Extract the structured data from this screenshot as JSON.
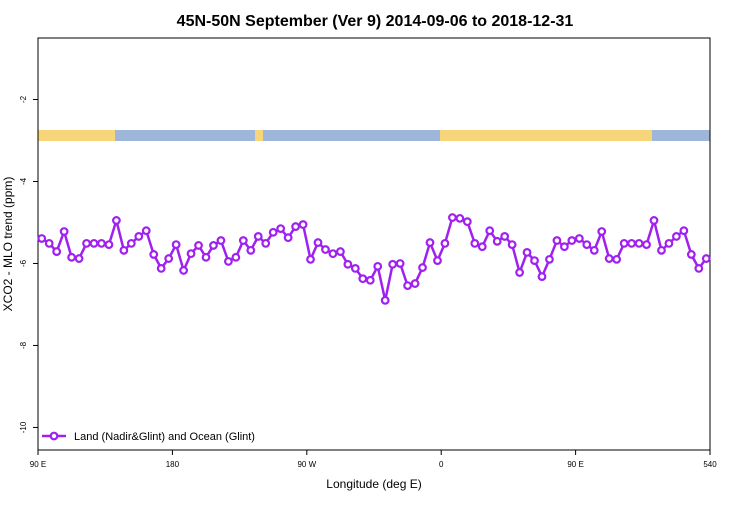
{
  "chart_data": {
    "type": "line",
    "title": "45N-50N September (Ver 9)   2014-09-06 to 2018-12-31",
    "x_label": "Longitude (deg E)",
    "y_label": "XCO2 - MLO trend (ppm)",
    "x": [
      92.5,
      97.5,
      102.5,
      107.5,
      112.5,
      117.5,
      122.5,
      127.5,
      132.5,
      137.5,
      142.5,
      147.5,
      152.5,
      157.5,
      162.5,
      167.5,
      172.5,
      177.5,
      182.5,
      187.5,
      192.5,
      197.5,
      202.5,
      207.5,
      212.5,
      217.5,
      222.5,
      227.5,
      232.5,
      237.5,
      242.5,
      247.5,
      252.5,
      257.5,
      262.5,
      267.5,
      272.5,
      277.5,
      282.5,
      287.5,
      292.5,
      297.5,
      302.5,
      307.5,
      312.5,
      317.5,
      322.5,
      327.5,
      332.5,
      337.5,
      342.5,
      347.5,
      352.5,
      357.5,
      362.5,
      367.5,
      372.5,
      377.5,
      382.5,
      387.5,
      392.5,
      397.5,
      402.5,
      407.5,
      412.5,
      417.5,
      422.5,
      427.5,
      432.5,
      437.5,
      442.5,
      447.5,
      452.5,
      457.5,
      462.5,
      467.5,
      472.5,
      477.5,
      482.5,
      487.5,
      492.5,
      497.5,
      502.5,
      507.5,
      512.5,
      517.5,
      522.5,
      527.5,
      532.5,
      537.5
    ],
    "series": [
      {
        "name": "Land (Nadir&Glint) and Ocean (Glint)",
        "color": "#a020f0",
        "values": [
          -5.39,
          -5.51,
          -5.71,
          -5.22,
          -5.85,
          -5.88,
          -5.51,
          -5.51,
          -5.51,
          -5.54,
          -4.95,
          -5.68,
          -5.51,
          -5.34,
          -5.2,
          -5.78,
          -6.12,
          -5.88,
          -5.54,
          -6.17,
          -5.76,
          -5.56,
          -5.85,
          -5.56,
          -5.44,
          -5.95,
          -5.85,
          -5.44,
          -5.68,
          -5.34,
          -5.51,
          -5.24,
          -5.15,
          -5.37,
          -5.1,
          -5.05,
          -5.9,
          -5.49,
          -5.66,
          -5.76,
          -5.71,
          -6.02,
          -6.12,
          -6.37,
          -6.41,
          -6.07,
          -6.9,
          -6.02,
          -6.0,
          -6.54,
          -6.49,
          -6.1,
          -5.49,
          -5.93,
          -5.51,
          -4.88,
          -4.9,
          -4.98,
          -5.51,
          -5.59,
          -5.2,
          -5.46,
          -5.34,
          -5.54,
          -6.22,
          -5.73,
          -5.93,
          -6.32,
          -5.9,
          -5.44,
          -5.59,
          -5.44,
          -5.39,
          -5.54,
          -5.68,
          -5.22,
          -5.88,
          -5.9,
          -5.51,
          -5.51,
          -5.51,
          -5.54,
          -4.95,
          -5.68,
          -5.51,
          -5.34,
          -5.2,
          -5.78,
          -6.12,
          -5.88
        ]
      }
    ],
    "xlim": [
      90,
      540
    ],
    "xticks": [
      {
        "value": 90,
        "label": "90 E"
      },
      180,
      {
        "value": 270,
        "label": "90 W"
      },
      {
        "value": 360,
        "label": "0"
      },
      {
        "value": 450,
        "label": "90 E"
      },
      540
    ],
    "ylim": [
      -10.55,
      -0.5
    ],
    "yticks": [
      -2,
      -4,
      -6,
      -8,
      -10
    ],
    "legend": "lower left"
  }
}
